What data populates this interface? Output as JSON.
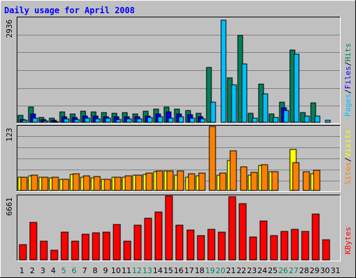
{
  "chart_data": [
    {
      "type": "bar",
      "title": "Daily usage for April 2008",
      "categories": [
        "1",
        "2",
        "3",
        "4",
        "5",
        "6",
        "7",
        "8",
        "9",
        "10",
        "11",
        "12",
        "13",
        "14",
        "15",
        "16",
        "17",
        "18",
        "19",
        "20",
        "21",
        "22",
        "23",
        "24",
        "25",
        "26",
        "27",
        "28",
        "29",
        "30",
        "31"
      ],
      "weekend_days": [
        "5",
        "6",
        "12",
        "13",
        "19",
        "20",
        "26",
        "27"
      ],
      "panels": [
        {
          "name": "hits_files_pages",
          "ymax_label": "2936",
          "ymax": 2936,
          "grid": true,
          "legend": [
            {
              "text": "Hits",
              "color": "#00805c"
            },
            {
              "text": "Files",
              "color": "#0000ff"
            },
            {
              "text": "Pages",
              "color": "#00c0ff"
            }
          ],
          "series": [
            {
              "name": "Hits",
              "color": "#00805c",
              "values": [
                190,
                440,
                140,
                110,
                290,
                240,
                310,
                300,
                280,
                260,
                280,
                240,
                310,
                380,
                430,
                370,
                330,
                250,
                1550,
                0,
                1250,
                2450,
                260,
                1080,
                240,
                560,
                2040,
                280,
                540,
                0,
                0
              ]
            },
            {
              "name": "Files",
              "color": "#0000ff",
              "values": [
                80,
                240,
                75,
                65,
                150,
                140,
                180,
                170,
                160,
                150,
                160,
                150,
                180,
                230,
                300,
                240,
                210,
                160,
                0,
                0,
                0,
                0,
                0,
                0,
                0,
                420,
                0,
                0,
                0,
                0,
                0
              ]
            },
            {
              "name": "Pages",
              "color": "#00c0ff",
              "values": [
                50,
                120,
                35,
                20,
                90,
                80,
                120,
                100,
                120,
                80,
                100,
                90,
                130,
                150,
                120,
                150,
                120,
                100,
                560,
                2880,
                1050,
                1650,
                120,
                800,
                140,
                340,
                1920,
                170,
                170,
                60,
                0
              ]
            }
          ]
        },
        {
          "name": "visits_sites",
          "ymax_label": "123",
          "ymax": 123,
          "grid": true,
          "legend": [
            {
              "text": "Visits",
              "color": "#ffff00"
            },
            {
              "text": "Sites",
              "color": "#ff8000"
            }
          ],
          "series": [
            {
              "name": "Visits",
              "color": "#ffff00",
              "values": [
                26,
                28,
                25,
                24,
                21,
                31,
                25,
                24,
                22,
                25,
                25,
                29,
                31,
                36,
                38,
                30,
                25,
                28,
                0,
                30,
                58,
                0,
                30,
                48,
                36,
                0,
                79,
                0,
                32,
                0,
                0
              ]
            },
            {
              "name": "Sites",
              "color": "#ff8000",
              "values": [
                26,
                29,
                26,
                25,
                21,
                32,
                28,
                27,
                22,
                26,
                28,
                30,
                33,
                38,
                38,
                37,
                32,
                33,
                123,
                34,
                76,
                46,
                35,
                49,
                36,
                0,
                53,
                36,
                39,
                0,
                0
              ]
            }
          ]
        },
        {
          "name": "kbytes",
          "ymax_label": "6661",
          "ymax": 6661,
          "grid": false,
          "legend": [
            {
              "text": "KBytes",
              "color": "#ff0000"
            }
          ],
          "series": [
            {
              "name": "KBytes",
              "color": "#ff0000",
              "values": [
                1620,
                3920,
                1950,
                980,
                2870,
                1990,
                2690,
                2850,
                2860,
                3670,
                1950,
                3640,
                4310,
                5010,
                6660,
                3650,
                3120,
                2570,
                3220,
                2910,
                6610,
                5880,
                2380,
                4070,
                2570,
                2970,
                3190,
                2960,
                4750,
                2130,
                0
              ]
            }
          ]
        }
      ]
    }
  ],
  "colors": {
    "frame": "#c0c0c0",
    "plot_bg": "#c0c0c0",
    "grid": "#808080",
    "title": "#0000ff",
    "weekday_label": "#000000",
    "weekend_label": "#00805c",
    "legend_separator": "#000000"
  }
}
